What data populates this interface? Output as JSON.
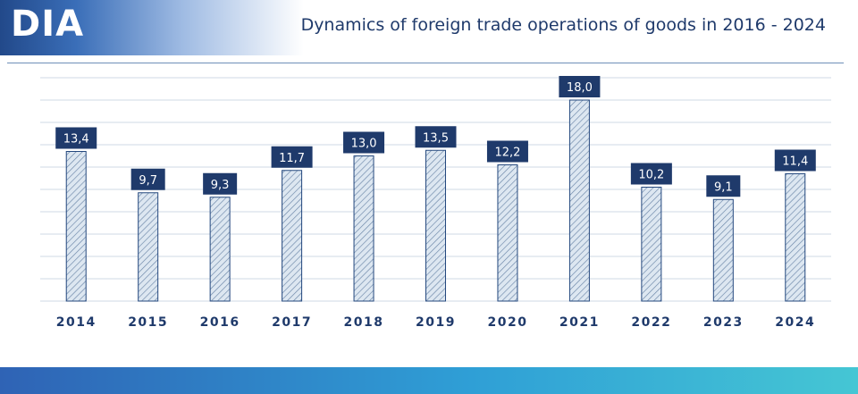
{
  "header": {
    "logo_text": "DIA",
    "title": "Dynamics of foreign trade operations of goods in 2016 - 2024"
  },
  "colors": {
    "navy": "#1f3a6b",
    "label_box": "#1f3a6b",
    "bar_fill": "#dde7f1",
    "bar_stroke": "#24487e",
    "hatch": "#6b86a8",
    "grid": "#cfd9e6"
  },
  "chart_data": {
    "type": "bar",
    "categories": [
      "2014",
      "2015",
      "2016",
      "2017",
      "2018",
      "2019",
      "2020",
      "2021",
      "2022",
      "2023",
      "2024"
    ],
    "values": [
      13.4,
      9.7,
      9.3,
      11.7,
      13.0,
      13.5,
      12.2,
      18.0,
      10.2,
      9.1,
      11.4
    ],
    "data_labels": [
      "13,4",
      "9,7",
      "9,3",
      "11,7",
      "13,0",
      "13,5",
      "12,2",
      "18,0",
      "10,2",
      "9,1",
      "11,4"
    ],
    "ylim": [
      0,
      20
    ],
    "grid": true,
    "legend": "none"
  }
}
